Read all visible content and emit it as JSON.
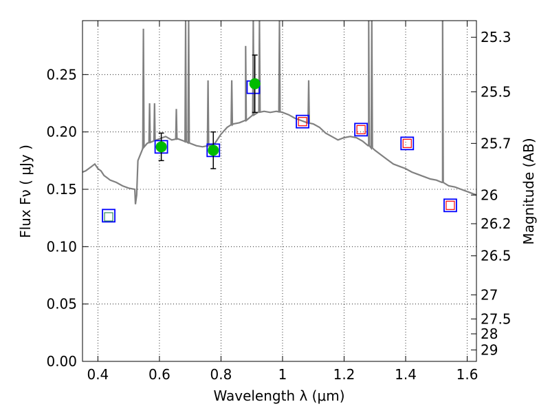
{
  "chart_data": {
    "type": "scatter",
    "xlabel": "Wavelength  λ (μm)",
    "ylabel": "Flux  Fν  ( μJy )",
    "y2label": "Magnitude (AB)",
    "xlim": [
      0.35,
      1.63
    ],
    "ylim": [
      0.0,
      0.297
    ],
    "grid": true,
    "x_ticks": [
      0.4,
      0.6,
      0.8,
      1.0,
      1.2,
      1.4,
      1.6
    ],
    "x_tick_labels": [
      "0.4",
      "0.6",
      "0.8",
      "1",
      "1.2",
      "1.4",
      "1.6"
    ],
    "y_ticks": [
      0.0,
      0.05,
      0.1,
      0.15,
      0.2,
      0.25
    ],
    "y_tick_labels": [
      "0.00",
      "0.05",
      "0.10",
      "0.15",
      "0.20",
      "0.25"
    ],
    "mag_ticks": [
      {
        "label": "25.3",
        "flux": 0.2825
      },
      {
        "label": "25.5",
        "flux": 0.235
      },
      {
        "label": "25.7",
        "flux": 0.19
      },
      {
        "label": "26",
        "flux": 0.145
      },
      {
        "label": "26.2",
        "flux": 0.12
      },
      {
        "label": "26.5",
        "flux": 0.092
      },
      {
        "label": "27",
        "flux": 0.058
      },
      {
        "label": "27.5",
        "flux": 0.037
      },
      {
        "label": "28",
        "flux": 0.024
      },
      {
        "label": "29",
        "flux": 0.01
      }
    ],
    "colors": {
      "model": "#808080",
      "observed": "#00bb00",
      "model_box": "#0000ff",
      "upper_limit": "#ff0000",
      "green_box": "#2e8b57",
      "errorbar": "#000000"
    },
    "model_spectrum": [
      [
        0.35,
        0.165
      ],
      [
        0.36,
        0.166
      ],
      [
        0.37,
        0.168
      ],
      [
        0.38,
        0.17
      ],
      [
        0.39,
        0.172
      ],
      [
        0.4,
        0.168
      ],
      [
        0.41,
        0.166
      ],
      [
        0.42,
        0.162
      ],
      [
        0.43,
        0.16
      ],
      [
        0.44,
        0.158
      ],
      [
        0.46,
        0.156
      ],
      [
        0.48,
        0.153
      ],
      [
        0.5,
        0.151
      ],
      [
        0.52,
        0.15
      ],
      [
        0.522,
        0.137
      ],
      [
        0.526,
        0.145
      ],
      [
        0.53,
        0.175
      ],
      [
        0.545,
        0.185
      ],
      [
        0.55,
        0.188
      ],
      [
        0.56,
        0.19
      ],
      [
        0.58,
        0.192
      ],
      [
        0.6,
        0.194
      ],
      [
        0.62,
        0.196
      ],
      [
        0.64,
        0.193
      ],
      [
        0.66,
        0.194
      ],
      [
        0.68,
        0.192
      ],
      [
        0.7,
        0.19
      ],
      [
        0.72,
        0.188
      ],
      [
        0.74,
        0.187
      ],
      [
        0.76,
        0.188
      ],
      [
        0.78,
        0.19
      ],
      [
        0.8,
        0.198
      ],
      [
        0.82,
        0.204
      ],
      [
        0.84,
        0.207
      ],
      [
        0.86,
        0.208
      ],
      [
        0.88,
        0.21
      ],
      [
        0.9,
        0.214
      ],
      [
        0.92,
        0.217
      ],
      [
        0.94,
        0.218
      ],
      [
        0.96,
        0.217
      ],
      [
        0.98,
        0.218
      ],
      [
        1.0,
        0.217
      ],
      [
        1.02,
        0.215
      ],
      [
        1.04,
        0.212
      ],
      [
        1.06,
        0.21
      ],
      [
        1.08,
        0.208
      ],
      [
        1.1,
        0.207
      ],
      [
        1.12,
        0.204
      ],
      [
        1.14,
        0.199
      ],
      [
        1.16,
        0.196
      ],
      [
        1.18,
        0.193
      ],
      [
        1.2,
        0.195
      ],
      [
        1.22,
        0.196
      ],
      [
        1.24,
        0.195
      ],
      [
        1.26,
        0.192
      ],
      [
        1.28,
        0.188
      ],
      [
        1.3,
        0.184
      ],
      [
        1.32,
        0.18
      ],
      [
        1.34,
        0.176
      ],
      [
        1.36,
        0.172
      ],
      [
        1.38,
        0.17
      ],
      [
        1.4,
        0.168
      ],
      [
        1.42,
        0.165
      ],
      [
        1.44,
        0.163
      ],
      [
        1.46,
        0.161
      ],
      [
        1.48,
        0.159
      ],
      [
        1.5,
        0.158
      ],
      [
        1.52,
        0.156
      ],
      [
        1.54,
        0.153
      ],
      [
        1.56,
        0.152
      ],
      [
        1.58,
        0.15
      ],
      [
        1.6,
        0.148
      ],
      [
        1.63,
        0.145
      ]
    ],
    "emission_lines": [
      {
        "x": 0.548,
        "top": 0.29
      },
      {
        "x": 0.568,
        "top": 0.225
      },
      {
        "x": 0.584,
        "top": 0.225
      },
      {
        "x": 0.655,
        "top": 0.22
      },
      {
        "x": 0.685,
        "top": 0.297
      },
      {
        "x": 0.695,
        "top": 0.297
      },
      {
        "x": 0.758,
        "top": 0.245
      },
      {
        "x": 0.835,
        "top": 0.245
      },
      {
        "x": 0.88,
        "top": 0.275
      },
      {
        "x": 0.905,
        "top": 0.297
      },
      {
        "x": 0.925,
        "top": 0.297
      },
      {
        "x": 0.99,
        "top": 0.297
      },
      {
        "x": 1.085,
        "top": 0.245
      },
      {
        "x": 1.28,
        "top": 0.297
      },
      {
        "x": 1.29,
        "top": 0.297
      },
      {
        "x": 1.52,
        "top": 0.297
      }
    ],
    "observed": [
      {
        "x": 0.606,
        "y": 0.187,
        "err": 0.012
      },
      {
        "x": 0.775,
        "y": 0.184,
        "err": 0.016
      },
      {
        "x": 0.91,
        "y": 0.242,
        "err": 0.025
      }
    ],
    "model_boxes": [
      {
        "x": 0.435,
        "y": 0.127
      },
      {
        "x": 0.606,
        "y": 0.187
      },
      {
        "x": 0.775,
        "y": 0.184
      },
      {
        "x": 0.905,
        "y": 0.239
      },
      {
        "x": 1.065,
        "y": 0.209
      },
      {
        "x": 1.255,
        "y": 0.202
      },
      {
        "x": 1.405,
        "y": 0.19
      },
      {
        "x": 1.545,
        "y": 0.136
      }
    ],
    "green_boxes": [
      {
        "x": 0.435,
        "y": 0.126
      }
    ],
    "red_boxes": [
      {
        "x": 1.065,
        "y": 0.209
      },
      {
        "x": 1.255,
        "y": 0.202
      },
      {
        "x": 1.405,
        "y": 0.19
      },
      {
        "x": 1.545,
        "y": 0.136
      }
    ]
  }
}
